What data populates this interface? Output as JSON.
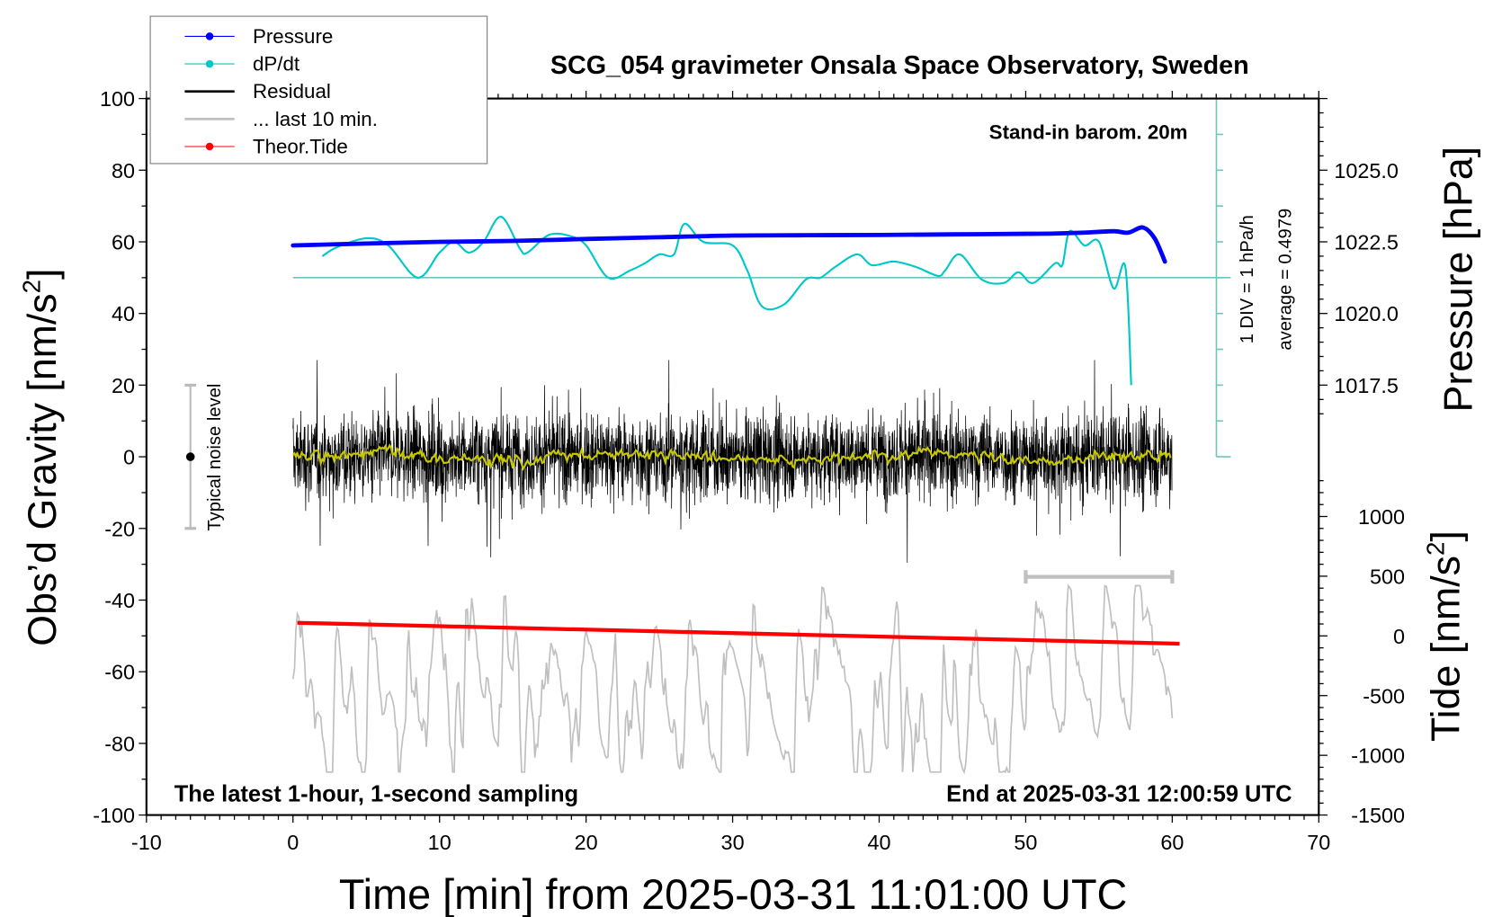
{
  "chart_data": {
    "type": "line",
    "title": "SCG_054 gravimeter Onsala Space Observatory, Sweden",
    "subtitle_right": "Stand-in barom. 20m",
    "note_bottom_left": "The latest 1-hour, 1-second sampling",
    "note_bottom_right": "End at 2025-03-31 12:00:59 UTC",
    "xlabel": "Time [min] from 2025-03-31 11:01:00 UTC",
    "ylabel_left": "Obs’d Gravity [nm/s",
    "ylabel_left_sup": "2",
    "ylabel_left_end": "]",
    "ylabel_right_pressure": "Pressure [hPa]",
    "ylabel_right_tide": "Tide [nm/s",
    "ylabel_right_tide_sup": "2",
    "ylabel_right_tide_end": "]",
    "xlim": [
      -10,
      70
    ],
    "ylim": [
      -100,
      100
    ],
    "xticks": [
      "-10",
      "0",
      "10",
      "20",
      "30",
      "40",
      "50",
      "60",
      "70"
    ],
    "yticks": [
      "100",
      "80",
      "60",
      "40",
      "20",
      "0",
      "-20",
      "-40",
      "-60",
      "-80",
      "-100"
    ],
    "pressure_ticks": [
      "1025.0",
      "1022.5",
      "1020.0",
      "1017.5"
    ],
    "tide_ticks": [
      "1000",
      "500",
      "0",
      "-500",
      "-1000",
      "-1500"
    ],
    "dpdt_scale_label": "1 DIV = 1 hPa/h",
    "dpdt_average_label": "average = 0.4979",
    "noise_label": "Typical noise level",
    "noise_level_range": [
      -20,
      20
    ],
    "legend": {
      "position": "top-left",
      "entries": [
        {
          "label": "Pressure",
          "color": "#0000ff",
          "marker": "dot"
        },
        {
          "label": "dP/dt",
          "color": "#00c8c8",
          "marker": "dot"
        },
        {
          "label": "Residual",
          "color": "#000000",
          "marker": "none"
        },
        {
          "label": "... last 10 min.",
          "color": "#c0c0c0",
          "marker": "none"
        },
        {
          "label": "Theor.Tide",
          "color": "#ff0000",
          "marker": "dot"
        }
      ]
    },
    "colors": {
      "pressure": "#0000ff",
      "dpdt": "#00c8c8",
      "dpdt_axis": "#6fc3c0",
      "residual": "#000000",
      "smoothed": "#c8c800",
      "last10": "#c0c0c0",
      "tide": "#ff0000"
    },
    "series": [
      {
        "name": "Pressure",
        "unit": "hPa",
        "t": [
          0,
          5,
          10,
          15,
          20,
          25,
          30,
          35,
          40,
          45,
          50,
          52,
          54,
          56,
          57,
          58,
          58.8,
          59.5
        ],
        "values": [
          1022.375,
          1022.44,
          1022.5,
          1022.53,
          1022.6,
          1022.66,
          1022.72,
          1022.73,
          1022.74,
          1022.76,
          1022.78,
          1022.79,
          1022.82,
          1022.87,
          1022.82,
          1023.0,
          1022.62,
          1021.81
        ]
      },
      {
        "name": "dP/dt",
        "unit": "hPa/h",
        "zero_at_gravity": 50,
        "div_nm_s2": 10,
        "t": [
          2,
          3,
          5,
          6.5,
          8.5,
          10,
          11,
          12,
          13,
          14.2,
          15.5,
          16,
          17.5,
          19,
          20,
          21.5,
          23,
          24,
          25,
          26,
          26.7,
          28,
          30,
          31,
          32,
          33.5,
          35,
          36,
          37,
          38.5,
          39.5,
          41,
          42.5,
          44,
          44.5,
          45.5,
          47,
          48.5,
          49.5,
          50.5,
          52,
          52.5,
          53,
          54,
          55,
          56,
          56.8,
          57.2
        ],
        "values": [
          0.6,
          0.85,
          1.1,
          0.9,
          0.0,
          0.7,
          1.0,
          0.7,
          1.0,
          1.7,
          0.8,
          0.7,
          1.2,
          1.15,
          0.9,
          0.0,
          0.2,
          0.4,
          0.65,
          0.65,
          1.5,
          1.0,
          0.9,
          0.2,
          -0.8,
          -0.75,
          -0.05,
          0.0,
          0.3,
          0.65,
          0.35,
          0.45,
          0.3,
          0.05,
          0.2,
          0.65,
          -0.05,
          -0.15,
          0.15,
          -0.15,
          0.4,
          0.35,
          1.3,
          0.9,
          1.0,
          -0.3,
          0.3,
          -3.0
        ]
      },
      {
        "name": "Theor.Tide",
        "unit": "nm/s2",
        "t": [
          0.3,
          60.5
        ],
        "values": [
          110,
          -65
        ]
      },
      {
        "name": "Residual",
        "unit": "nm/s2",
        "t_range": [
          0,
          60
        ],
        "n_points": 3600,
        "typical_range": [
          -20,
          20
        ],
        "extremes": [
          -40,
          27
        ]
      },
      {
        "name": "... last 10 min.",
        "unit": "nm/s2",
        "t_range": [
          0,
          60
        ],
        "source_window_min": [
          50,
          60
        ],
        "value_range": [
          -88,
          -36
        ]
      }
    ]
  }
}
